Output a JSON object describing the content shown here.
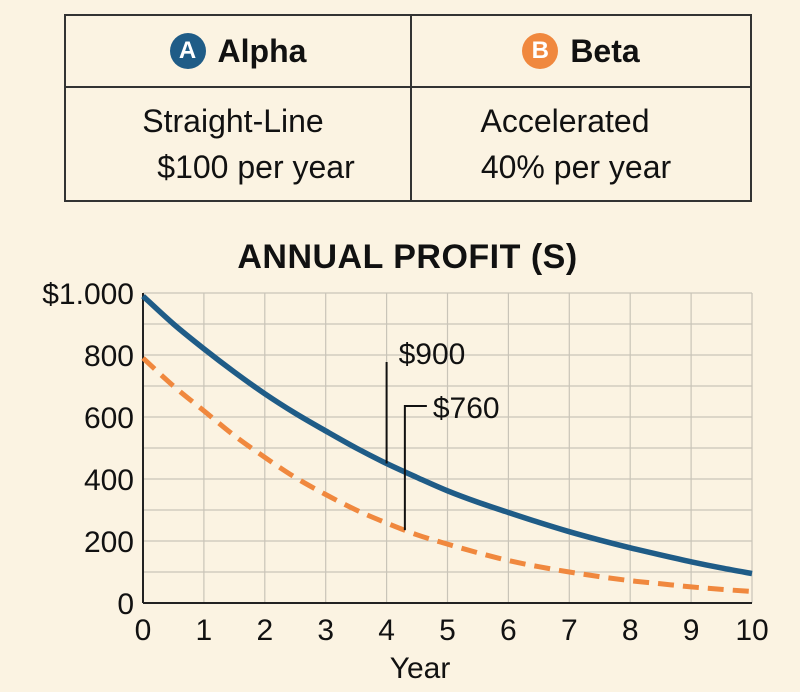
{
  "methods": [
    {
      "badge": "A",
      "name": "Alpha",
      "method": "Straight-Line",
      "rate": "$100 per year",
      "color": "#1f5c87"
    },
    {
      "badge": "B",
      "name": "Beta",
      "method": "Accelerated",
      "rate": "40% per year",
      "color": "#f0883e"
    }
  ],
  "chart_data": {
    "type": "line",
    "title": "ANNUAL PROFIT (S)",
    "xlabel": "Year",
    "ylabel": "",
    "xlim": [
      0,
      10
    ],
    "ylim": [
      0,
      1000
    ],
    "x_ticks": [
      "0",
      "1",
      "2",
      "3",
      "4",
      "5",
      "6",
      "7",
      "8",
      "9",
      "10"
    ],
    "y_ticks": [
      {
        "value": 0,
        "label": "0"
      },
      {
        "value": 200,
        "label": "200"
      },
      {
        "value": 400,
        "label": "400"
      },
      {
        "value": 600,
        "label": "600"
      },
      {
        "value": 800,
        "label": "800"
      },
      {
        "value": 1000,
        "label": "$1.000"
      }
    ],
    "grid": true,
    "series": [
      {
        "style": "solid",
        "color": "#1f5c87",
        "x": [
          0,
          0.5,
          1,
          1.5,
          2,
          2.5,
          3,
          3.5,
          4,
          4.5,
          5,
          5.5,
          6,
          6.5,
          7,
          7.5,
          8,
          8.5,
          9,
          9.5,
          10
        ],
        "y": [
          990,
          900,
          820,
          745,
          675,
          612,
          555,
          500,
          450,
          405,
          362,
          325,
          292,
          260,
          230,
          203,
          178,
          155,
          133,
          113,
          95
        ]
      },
      {
        "style": "dashed",
        "color": "#f0883e",
        "x": [
          0,
          0.5,
          1,
          1.5,
          2,
          2.5,
          3,
          3.5,
          4,
          4.5,
          5,
          5.5,
          6,
          6.5,
          7,
          7.5,
          8,
          8.5,
          9,
          9.5,
          10
        ],
        "y": [
          790,
          700,
          620,
          540,
          470,
          405,
          350,
          300,
          258,
          220,
          190,
          162,
          137,
          117,
          100,
          85,
          72,
          62,
          52,
          44,
          37
        ]
      }
    ],
    "annotations": [
      {
        "text": "$900",
        "x": 4,
        "series": 0
      },
      {
        "text": "$760",
        "x": 4.3,
        "series": 1
      }
    ]
  }
}
